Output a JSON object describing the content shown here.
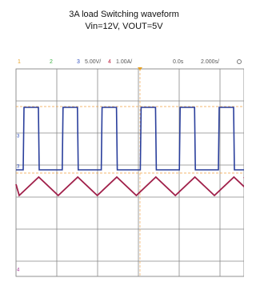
{
  "title": {
    "line1": "3A load Switching waveform",
    "line2": "Vin=12V, VOUT=5V"
  },
  "header": {
    "ch1": "1",
    "ch2": "2",
    "ch3": "3",
    "ch3_scale": "5.00V/",
    "ch4": "4",
    "ch4_scale": "1.00A/",
    "time_pos": "0.0s",
    "time_scale": "2.000s/"
  }
}
